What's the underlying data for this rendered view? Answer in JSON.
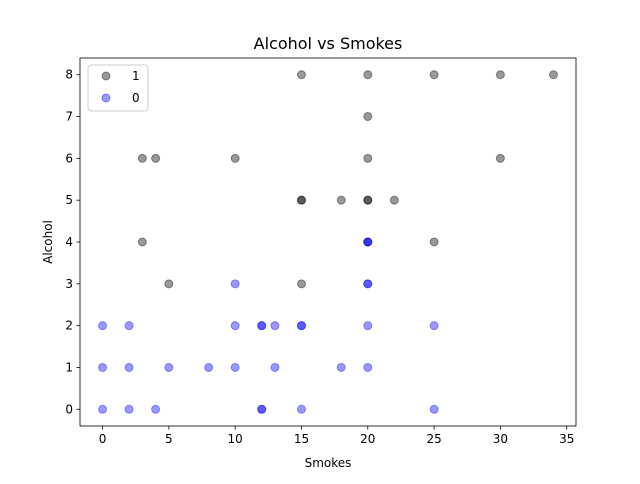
{
  "chart_data": {
    "type": "scatter",
    "title": "Alcohol vs Smokes",
    "xlabel": "Smokes",
    "ylabel": "Alcohol",
    "xlim": [
      -1.7,
      35.7
    ],
    "ylim": [
      -0.4,
      8.4
    ],
    "xticks": [
      0,
      5,
      10,
      15,
      20,
      25,
      30,
      35
    ],
    "yticks": [
      0,
      1,
      2,
      3,
      4,
      5,
      6,
      7,
      8
    ],
    "grid": false,
    "legend_position": "top-left",
    "marker_alpha": 0.4,
    "series": [
      {
        "name": "1",
        "color": "#000000",
        "points": [
          [
            15,
            8
          ],
          [
            20,
            8
          ],
          [
            25,
            8
          ],
          [
            30,
            8
          ],
          [
            34,
            8
          ],
          [
            20,
            7
          ],
          [
            3,
            6
          ],
          [
            4,
            6
          ],
          [
            10,
            6
          ],
          [
            20,
            6
          ],
          [
            30,
            6
          ],
          [
            15,
            5
          ],
          [
            15,
            5
          ],
          [
            18,
            5
          ],
          [
            20,
            5
          ],
          [
            20,
            5
          ],
          [
            22,
            5
          ],
          [
            3,
            4
          ],
          [
            20,
            4
          ],
          [
            25,
            4
          ],
          [
            5,
            3
          ],
          [
            15,
            3
          ]
        ]
      },
      {
        "name": "0",
        "color": "#0000ff",
        "points": [
          [
            20,
            4
          ],
          [
            20,
            4
          ],
          [
            10,
            3
          ],
          [
            20,
            3
          ],
          [
            20,
            3
          ],
          [
            0,
            2
          ],
          [
            2,
            2
          ],
          [
            10,
            2
          ],
          [
            12,
            2
          ],
          [
            12,
            2
          ],
          [
            13,
            2
          ],
          [
            15,
            2
          ],
          [
            15,
            2
          ],
          [
            20,
            2
          ],
          [
            25,
            2
          ],
          [
            0,
            1
          ],
          [
            2,
            1
          ],
          [
            5,
            1
          ],
          [
            8,
            1
          ],
          [
            10,
            1
          ],
          [
            13,
            1
          ],
          [
            18,
            1
          ],
          [
            20,
            1
          ],
          [
            0,
            0
          ],
          [
            2,
            0
          ],
          [
            4,
            0
          ],
          [
            12,
            0
          ],
          [
            12,
            0
          ],
          [
            15,
            0
          ],
          [
            25,
            0
          ]
        ]
      }
    ]
  }
}
